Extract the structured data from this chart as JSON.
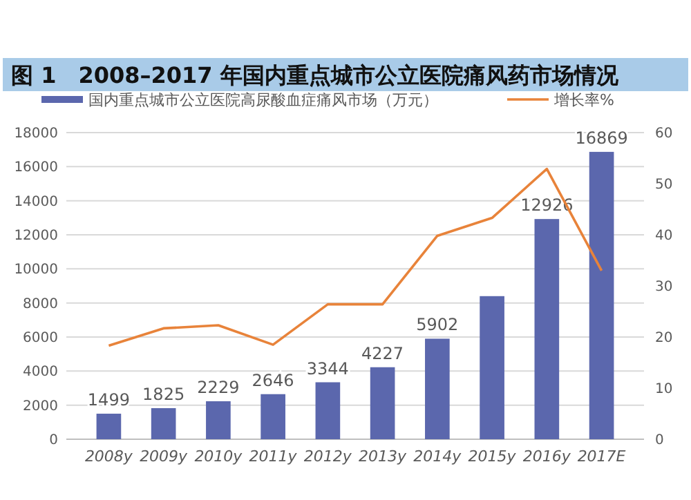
{
  "chart_data": {
    "type": "bar",
    "title": "图 1　2008–2017 年国内重点城市公立医院痛风药市场情况",
    "categories": [
      "2008y",
      "2009y",
      "2010y",
      "2011y",
      "2012y",
      "2013y",
      "2014y",
      "2015y",
      "2016y",
      "2017E"
    ],
    "series": [
      {
        "name": "国内重点城市公立医院高尿酸血症痛风市场（万元）",
        "color": "#5b67ad",
        "values": [
          1499,
          1825,
          2229,
          2646,
          3344,
          4227,
          5902,
          8400,
          12926,
          16869
        ],
        "value_labels": [
          "1499",
          "1825",
          "2229",
          "2646",
          "3344",
          "4227",
          "5902",
          null,
          "12926",
          "16869"
        ]
      },
      {
        "name": "增长率%",
        "type": "line",
        "axis": "y2",
        "color": "#e8833a",
        "values": [
          18.3,
          21.7,
          22.3,
          18.5,
          26.4,
          26.4,
          39.8,
          43.3,
          52.9,
          33
        ]
      }
    ],
    "ylim": [
      0,
      18000
    ],
    "yticks": [
      0,
      2000,
      4000,
      6000,
      8000,
      10000,
      12000,
      14000,
      16000,
      18000
    ],
    "y2lim": [
      0,
      60
    ],
    "y2ticks": [
      0,
      10,
      20,
      30,
      40,
      50,
      60
    ],
    "grid": "y",
    "legend": "top",
    "marker": "none"
  }
}
